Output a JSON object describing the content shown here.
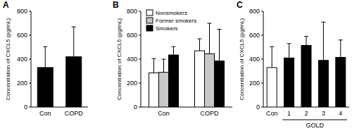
{
  "chart_data": [
    {
      "type": "bar",
      "title": "A",
      "y_label": "Concentration of CXCL5 (pg/mL)",
      "categories": [
        "Con",
        "COPD"
      ],
      "values": [
        330,
        420
      ],
      "errors": [
        175,
        250
      ],
      "color": "#000000",
      "ylim": [
        0,
        800
      ],
      "yticks": [
        0,
        200,
        400,
        600,
        800
      ]
    },
    {
      "type": "bar",
      "title": "B",
      "y_label": "Concentration of CXCL5 (pg/mL)",
      "categories": [
        "Con",
        "COPD"
      ],
      "series": [
        {
          "name": "Nonsmokers",
          "color": "#ffffff",
          "values": [
            285,
            470
          ],
          "errors": [
            120,
            100
          ]
        },
        {
          "name": "Former smokers",
          "color": "#c8c8c8",
          "values": [
            290,
            445
          ],
          "errors": [
            110,
            255
          ]
        },
        {
          "name": "Smokers",
          "color": "#000000",
          "values": [
            435,
            385
          ],
          "errors": [
            70,
            265
          ]
        }
      ],
      "legend": "top",
      "ylim": [
        0,
        800
      ],
      "yticks": [
        0,
        200,
        400,
        600,
        800
      ]
    },
    {
      "type": "bar",
      "title": "C",
      "y_label": "Concentration of CXCL5 (pg/mL)",
      "x_label": "GOLD",
      "categories": [
        "Con",
        "1",
        "2",
        "3",
        "4"
      ],
      "values": [
        330,
        410,
        515,
        390,
        415
      ],
      "errors": [
        175,
        120,
        75,
        320,
        145
      ],
      "colors": [
        "#ffffff",
        "#000000",
        "#000000",
        "#000000",
        "#000000"
      ],
      "ylim": [
        0,
        800
      ],
      "yticks": [
        0,
        200,
        400,
        600,
        800
      ]
    }
  ]
}
